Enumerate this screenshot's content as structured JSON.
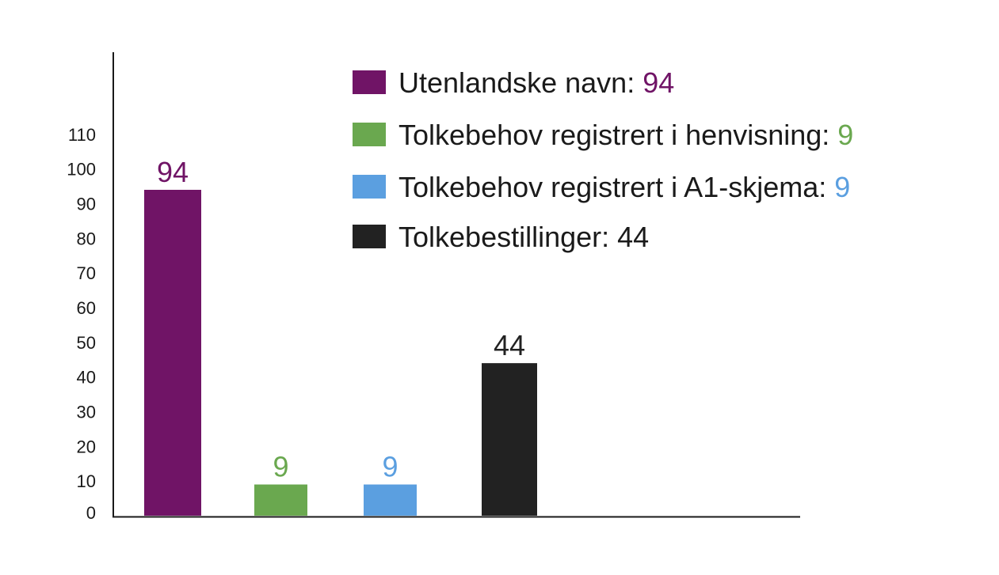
{
  "chart_data": {
    "type": "bar",
    "title": "",
    "xlabel": "",
    "ylabel": "",
    "ylim": [
      0,
      110
    ],
    "yticks": [
      0,
      10,
      20,
      30,
      40,
      50,
      60,
      70,
      80,
      90,
      100,
      110
    ],
    "grid": false,
    "legend_position": "top-right",
    "categories": [
      "Utenlandske navn",
      "Tolkebehov registrert i henvisning",
      "Tolkebehov registrert i A1-skjema",
      "Tolkebestillinger"
    ],
    "values": [
      94,
      9,
      9,
      44
    ],
    "data_labels": [
      "94",
      "9",
      "9",
      "44"
    ],
    "colors": [
      "#701466",
      "#6aa84f",
      "#5b9fe0",
      "#222222"
    ],
    "legend": [
      {
        "label": "Utenlandske navn: ",
        "value": "94",
        "color": "#701466",
        "value_color": "#701466"
      },
      {
        "label": "Tolkebehov registrert i henvisning: ",
        "value": "9",
        "color": "#6aa84f",
        "value_color": "#6aa84f"
      },
      {
        "label": "Tolkebehov registrert i A1-skjema: ",
        "value": "9",
        "color": "#5b9fe0",
        "value_color": "#5b9fe0"
      },
      {
        "label": "Tolkebestillinger: ",
        "value": "44",
        "color": "#222222",
        "value_color": "#1a1a1a"
      }
    ]
  }
}
